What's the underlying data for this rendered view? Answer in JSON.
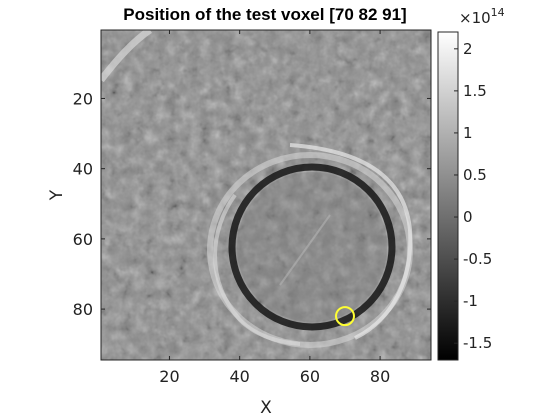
{
  "chart_data": {
    "type": "heatmap",
    "title": "Position of the test voxel [70 82 91]",
    "xlabel": "X",
    "ylabel": "Y",
    "xlim": [
      0.5,
      94.5
    ],
    "ylim": [
      0.5,
      94.5
    ],
    "y_reversed": true,
    "x_ticks": [
      20,
      40,
      60,
      80
    ],
    "y_ticks": [
      20,
      40,
      60,
      80
    ],
    "colormap": "gray",
    "colorbar": {
      "range": [
        -1.7,
        2.2
      ],
      "ticks": [
        -1.5,
        -1,
        -0.5,
        0,
        0.5,
        1,
        1.5,
        2
      ],
      "tick_labels": [
        "-1.5",
        "-1",
        "-0.5",
        "0",
        "0.5",
        "1",
        "1.5",
        "2"
      ],
      "exponent_base": "×10",
      "exponent_power": "14"
    },
    "image_description_features": {
      "background_mean": 0.1,
      "ring_center": [
        60,
        71
      ],
      "ring_radius": 23,
      "outer_edge_bright": true
    },
    "marker": {
      "shape": "circle",
      "x": 70,
      "y": 82,
      "color": "#ffff33"
    }
  }
}
